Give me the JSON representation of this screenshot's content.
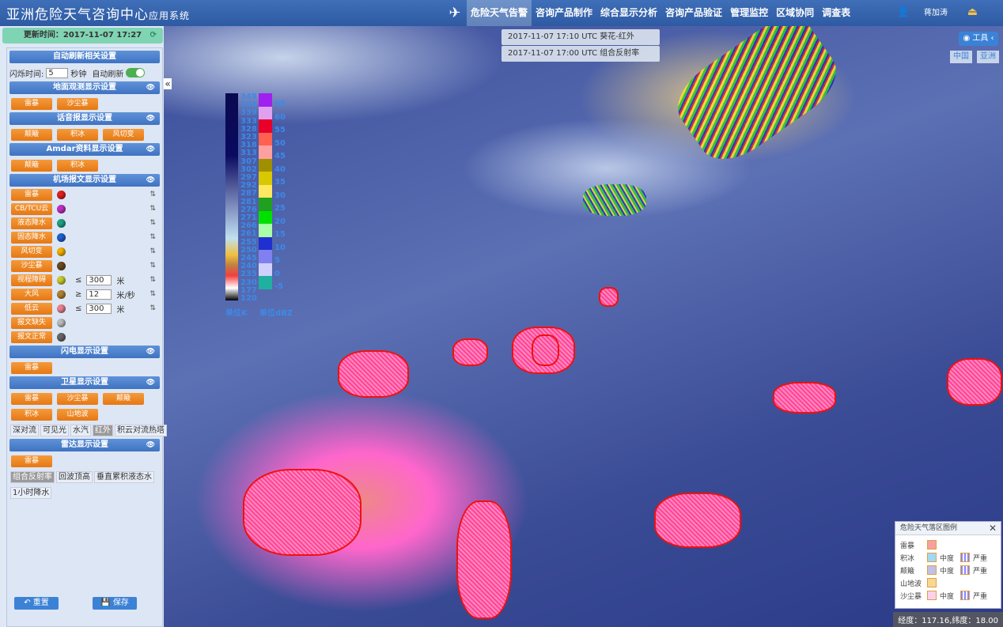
{
  "header": {
    "title_main": "亚洲危险天气咨询中心",
    "title_sub": "应用系统",
    "nav": [
      "危险天气告警",
      "咨询产品制作",
      "综合显示分析",
      "咨询产品验证",
      "管理监控",
      "区域协同",
      "调查表"
    ],
    "active_nav": 0,
    "user": "蒋加涛"
  },
  "update": {
    "label": "更新时间：2017-11-07 17:27"
  },
  "auto_refresh": {
    "title": "自动刷新相关设置",
    "blink_label": "闪烁时间:",
    "blink_value": "5",
    "unit": "秒钟",
    "auto_label": "自动刷新",
    "auto_on": true
  },
  "sections": {
    "ground": {
      "title": "地面观测显示设置",
      "buttons": [
        "雷暴",
        "沙尘暴"
      ]
    },
    "voice": {
      "title": "话音报显示设置",
      "buttons": [
        "颠簸",
        "积冰",
        "风切变"
      ]
    },
    "amdar": {
      "title": "Amdar资料显示设置",
      "buttons": [
        "颠簸",
        "积冰"
      ]
    },
    "airport": {
      "title": "机场报文显示设置",
      "items": [
        {
          "label": "雷暴",
          "color": "#e02020"
        },
        {
          "label": "CB/TCU云",
          "color": "#c030c0"
        },
        {
          "label": "液态降水",
          "color": "#20a080"
        },
        {
          "label": "固态降水",
          "color": "#2060d0"
        },
        {
          "label": "风切变",
          "color": "#f0b000"
        },
        {
          "label": "沙尘暴",
          "color": "#6a4a20"
        },
        {
          "label": "视程障碍",
          "color": "#c8c830",
          "op": "≤",
          "value": "300",
          "unit": "米"
        },
        {
          "label": "大风",
          "color": "#b08030",
          "op": "≥",
          "value": "12",
          "unit": "米/秒"
        },
        {
          "label": "低云",
          "color": "#e88090",
          "op": "≤",
          "value": "300",
          "unit": "米"
        },
        {
          "label": "报文缺失",
          "color": "#bbbbbb"
        },
        {
          "label": "报文正常",
          "color": "#666666"
        }
      ]
    },
    "lightning": {
      "title": "闪电显示设置",
      "buttons": [
        "雷暴"
      ]
    },
    "satellite": {
      "title": "卫星显示设置",
      "buttons": [
        "雷暴",
        "沙尘暴",
        "颠簸",
        "积冰",
        "山地波"
      ],
      "channels": [
        "深对流",
        "可见光",
        "水汽",
        "红外",
        "积云对流热塔"
      ],
      "active_channel": 3
    },
    "radar": {
      "title": "雷达显示设置",
      "buttons": [
        "雷暴"
      ],
      "products": [
        "组合反射率",
        "回波顶高",
        "垂直累积液态水",
        "1小时降水"
      ],
      "active_product": 0
    }
  },
  "footer": {
    "reset": "重置",
    "save": "保存"
  },
  "map": {
    "layers": [
      "2017-11-07 17:10 UTC 葵花-红外",
      "2017-11-07 17:00 UTC 组合反射率"
    ],
    "tools": "工具",
    "regions": [
      "中国",
      "亚洲"
    ],
    "coord": "经度：117.16,纬度：18.00"
  },
  "colorbar_k": {
    "ticks": [
      "349",
      "344",
      "339",
      "333",
      "328",
      "323",
      "318",
      "313",
      "307",
      "302",
      "297",
      "292",
      "287",
      "281",
      "276",
      "271",
      "266",
      "261",
      "255",
      "250",
      "245",
      "240",
      "235",
      "230",
      "177",
      "120"
    ],
    "unit": "单位K"
  },
  "colorbar_dbz": {
    "ticks": [
      "65",
      "60",
      "55",
      "50",
      "45",
      "40",
      "35",
      "30",
      "25",
      "20",
      "15",
      "10",
      "5",
      "0",
      "-5"
    ],
    "colors": [
      "#a020f0",
      "#e0a0f0",
      "#e8002a",
      "#ff6050",
      "#ffa0a0",
      "#a09000",
      "#d8c800",
      "#ffe860",
      "#20a020",
      "#00e000",
      "#a8ffa8",
      "#2030d0",
      "#8080f0",
      "#d0d0ff",
      "#20b0a0"
    ],
    "unit": "单位dBZ"
  },
  "legend": {
    "title": "危险天气落区图例",
    "rows": [
      {
        "name": "雷暴"
      },
      {
        "name": "积冰",
        "mid": "中度",
        "severe": "严重"
      },
      {
        "name": "颠簸",
        "mid": "中度",
        "severe": "严重"
      },
      {
        "name": "山地波"
      },
      {
        "name": "沙尘暴",
        "mid": "中度",
        "severe": "严重"
      }
    ]
  }
}
